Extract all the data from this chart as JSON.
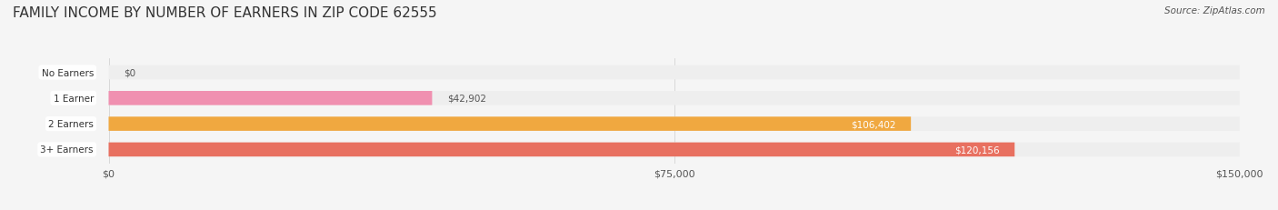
{
  "title": "FAMILY INCOME BY NUMBER OF EARNERS IN ZIP CODE 62555",
  "source": "Source: ZipAtlas.com",
  "categories": [
    "No Earners",
    "1 Earner",
    "2 Earners",
    "3+ Earners"
  ],
  "values": [
    0,
    42902,
    106402,
    120156
  ],
  "labels": [
    "$0",
    "$42,902",
    "$106,402",
    "$120,156"
  ],
  "bar_colors": [
    "#a0a0d8",
    "#f090b0",
    "#f0a840",
    "#e87060"
  ],
  "bar_bg_color": "#eeeeee",
  "label_colors": [
    "#555555",
    "#555555",
    "#ffffff",
    "#ffffff"
  ],
  "xlim": [
    0,
    150000
  ],
  "xticks": [
    0,
    75000,
    150000
  ],
  "xtick_labels": [
    "$0",
    "$75,000",
    "$150,000"
  ],
  "background_color": "#f5f5f5",
  "title_fontsize": 11,
  "bar_height": 0.55,
  "figsize": [
    14.06,
    2.32
  ],
  "dpi": 100
}
